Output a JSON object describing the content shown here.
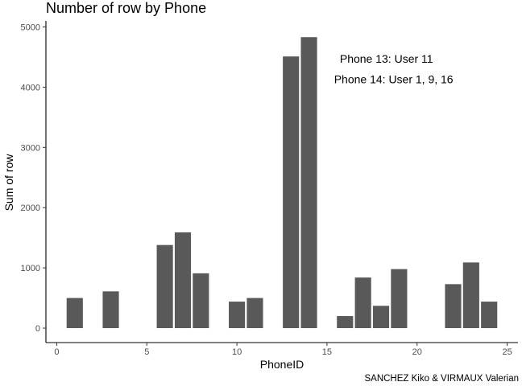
{
  "chart_data": {
    "type": "bar",
    "title": "Number of row by Phone",
    "xlabel": "PhoneID",
    "ylabel": "Sum of row",
    "caption": "SANCHEZ Kiko & VIRMAUX Valerian",
    "bar_color": "#595959",
    "xlim": [
      -0.6,
      25.6
    ],
    "ylim": [
      -240,
      5100
    ],
    "x_ticks": [
      0,
      5,
      10,
      15,
      20,
      25
    ],
    "y_ticks": [
      0,
      1000,
      2000,
      3000,
      4000,
      5000
    ],
    "grid": false,
    "annotations": [
      {
        "text": "Phone 13: User 11",
        "x": 18.3,
        "y": 4470
      },
      {
        "text": "Phone 14: User 1, 9, 16",
        "x": 18.7,
        "y": 4130
      }
    ],
    "x": [
      1,
      3,
      6,
      7,
      8,
      10,
      11,
      13,
      14,
      16,
      17,
      18,
      19,
      22,
      23,
      24
    ],
    "values": [
      500,
      610,
      1380,
      1590,
      910,
      440,
      500,
      4510,
      4830,
      200,
      840,
      370,
      980,
      730,
      1090,
      440
    ]
  }
}
